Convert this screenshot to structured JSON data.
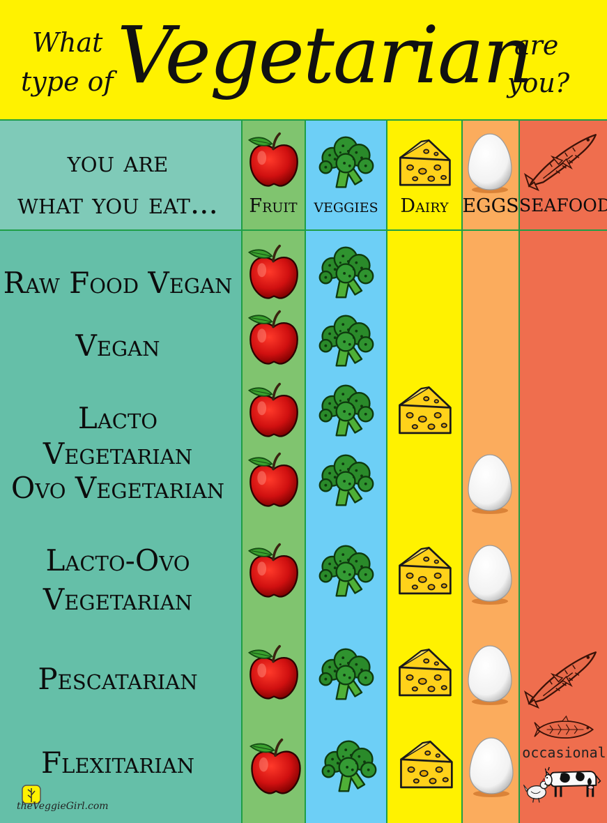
{
  "header": {
    "line1_left": "What",
    "line2_left": "type of",
    "title": "Vegetarian",
    "line1_right": "are",
    "line2_right": "you?"
  },
  "intro": {
    "line1": "you are",
    "line2": "what you eat..."
  },
  "columns": [
    {
      "label": "Fruit",
      "color": "#80c46f"
    },
    {
      "label": "veggies",
      "color": "#6dcff6"
    },
    {
      "label": "Dairy",
      "color": "#fff200"
    },
    {
      "label": "EGGS",
      "color": "#fbac5d"
    },
    {
      "label": "SEAFOOD",
      "color": "#ef6e4e"
    }
  ],
  "label_column_color": "#65bfa8",
  "rows": [
    {
      "line1": "Raw Food Vegan",
      "line2": "",
      "foods": [
        "fruit",
        "veggies"
      ]
    },
    {
      "line1": "Vegan",
      "line2": "",
      "foods": [
        "fruit",
        "veggies"
      ]
    },
    {
      "line1": "Lacto Vegetarian",
      "line2": "",
      "foods": [
        "fruit",
        "veggies",
        "dairy"
      ]
    },
    {
      "line1": "Ovo Vegetarian",
      "line2": "",
      "foods": [
        "fruit",
        "veggies",
        "eggs"
      ]
    },
    {
      "line1": "Lacto-Ovo",
      "line2": "Vegetarian",
      "foods": [
        "fruit",
        "veggies",
        "dairy",
        "eggs"
      ]
    },
    {
      "line1": "Pescatarian",
      "line2": "",
      "foods": [
        "fruit",
        "veggies",
        "dairy",
        "eggs",
        "seafood"
      ]
    },
    {
      "line1": "Flexitarian",
      "line2": "",
      "foods": [
        "fruit",
        "veggies",
        "dairy",
        "eggs"
      ]
    }
  ],
  "occasional_label": "occasional",
  "icons": {
    "fruit": "apple-icon",
    "veggies": "broccoli-icon",
    "dairy": "cheese-icon",
    "eggs": "egg-icon",
    "seafood": "fish-icon",
    "flexitarian_extra": [
      "fish-icon",
      "chicken-icon",
      "cow-icon"
    ]
  },
  "footer": {
    "logo_text": "theVeggieGirl.com"
  }
}
